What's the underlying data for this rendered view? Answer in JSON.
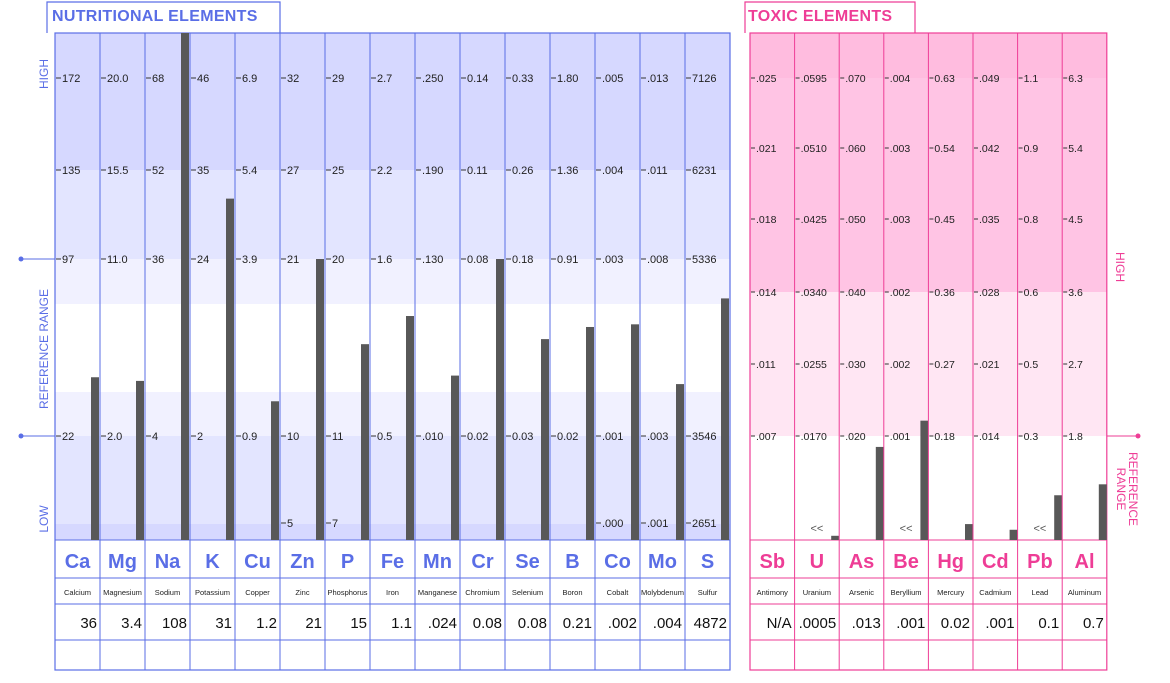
{
  "nutritional": {
    "title": "NUTRITIONAL ELEMENTS",
    "side_labels": {
      "high": "HIGH",
      "reference": "REFERENCE RANGE",
      "low": "LOW"
    },
    "colors": {
      "border": "#5a6ee6",
      "band_dark": "#d6d8ff",
      "band_mid": "#e3e5ff",
      "band_light": "#f1f1ff",
      "bar": "#585858"
    },
    "elements": [
      {
        "symbol": "Ca",
        "name": "Calcium",
        "result": "36",
        "ticks": [
          "172",
          "135",
          "97",
          "22"
        ]
      },
      {
        "symbol": "Mg",
        "name": "Magnesium",
        "result": "3.4",
        "ticks": [
          "20.0",
          "15.5",
          "11.0",
          "2.0"
        ]
      },
      {
        "symbol": "Na",
        "name": "Sodium",
        "result": "108",
        "ticks": [
          "68",
          "52",
          "36",
          "4"
        ]
      },
      {
        "symbol": "K",
        "name": "Potassium",
        "result": "31",
        "ticks": [
          "46",
          "35",
          "24",
          "2"
        ]
      },
      {
        "symbol": "Cu",
        "name": "Copper",
        "result": "1.2",
        "ticks": [
          "6.9",
          "5.4",
          "3.9",
          "0.9"
        ]
      },
      {
        "symbol": "Zn",
        "name": "Zinc",
        "result": "21",
        "ticks": [
          "32",
          "27",
          "21",
          "10"
        ],
        "bottom_tick": "5"
      },
      {
        "symbol": "P",
        "name": "Phosphorus",
        "result": "15",
        "ticks": [
          "29",
          "25",
          "20",
          "11"
        ],
        "bottom_tick": "7"
      },
      {
        "symbol": "Fe",
        "name": "Iron",
        "result": "1.1",
        "ticks": [
          "2.7",
          "2.2",
          "1.6",
          "0.5"
        ]
      },
      {
        "symbol": "Mn",
        "name": "Manganese",
        "result": ".024",
        "ticks": [
          ".250",
          ".190",
          ".130",
          ".010"
        ]
      },
      {
        "symbol": "Cr",
        "name": "Chromium",
        "result": "0.08",
        "ticks": [
          "0.14",
          "0.11",
          "0.08",
          "0.02"
        ]
      },
      {
        "symbol": "Se",
        "name": "Selenium",
        "result": "0.08",
        "ticks": [
          "0.33",
          "0.26",
          "0.18",
          "0.03"
        ]
      },
      {
        "symbol": "B",
        "name": "Boron",
        "result": "0.21",
        "ticks": [
          "1.80",
          "1.36",
          "0.91",
          "0.02"
        ]
      },
      {
        "symbol": "Co",
        "name": "Cobalt",
        "result": ".002",
        "ticks": [
          ".005",
          ".004",
          ".003",
          ".001"
        ],
        "bottom_tick": ".000"
      },
      {
        "symbol": "Mo",
        "name": "Molybdenum",
        "result": ".004",
        "ticks": [
          ".013",
          ".011",
          ".008",
          ".003"
        ],
        "bottom_tick": ".001"
      },
      {
        "symbol": "S",
        "name": "Sulfur",
        "result": "4872",
        "ticks": [
          "7126",
          "6231",
          "5336",
          "3546"
        ],
        "bottom_tick": "2651"
      }
    ]
  },
  "toxic": {
    "title": "TOXIC ELEMENTS",
    "side_labels": {
      "high": "HIGH",
      "reference": "REFERENCE RANGE"
    },
    "colors": {
      "border": "#ee3d96",
      "band_dark": "#ffc4e4",
      "band_mid": "#ffd3ea",
      "band_light": "#ffe6f3",
      "bar": "#585858"
    },
    "elements": [
      {
        "symbol": "Sb",
        "name": "Antimony",
        "result": "N/A",
        "ticks": [
          ".025",
          ".021",
          ".018",
          ".014",
          ".011",
          ".007"
        ]
      },
      {
        "symbol": "U",
        "name": "Uranium",
        "result": ".0005",
        "ticks": [
          ".0595",
          ".0510",
          ".0425",
          ".0340",
          ".0255",
          ".0170"
        ],
        "marker": "<<"
      },
      {
        "symbol": "As",
        "name": "Arsenic",
        "result": ".013",
        "ticks": [
          ".070",
          ".060",
          ".050",
          ".040",
          ".030",
          ".020"
        ]
      },
      {
        "symbol": "Be",
        "name": "Beryllium",
        "result": ".001",
        "ticks": [
          ".004",
          ".003",
          ".003",
          ".002",
          ".002",
          ".001"
        ],
        "marker": "<<"
      },
      {
        "symbol": "Hg",
        "name": "Mercury",
        "result": "0.02",
        "ticks": [
          "0.63",
          "0.54",
          "0.45",
          "0.36",
          "0.27",
          "0.18"
        ]
      },
      {
        "symbol": "Cd",
        "name": "Cadmium",
        "result": ".001",
        "ticks": [
          ".049",
          ".042",
          ".035",
          ".028",
          ".021",
          ".014"
        ]
      },
      {
        "symbol": "Pb",
        "name": "Lead",
        "result": "0.1",
        "ticks": [
          "1.1",
          "0.9",
          "0.8",
          "0.6",
          "0.5",
          "0.3"
        ],
        "marker": "<<"
      },
      {
        "symbol": "Al",
        "name": "Aluminum",
        "result": "0.7",
        "ticks": [
          "6.3",
          "5.4",
          "4.5",
          "3.6",
          "2.7",
          "1.8"
        ]
      }
    ]
  },
  "chart_data": {
    "type": "bar",
    "title": "",
    "series": [
      {
        "name": "NUTRITIONAL ELEMENTS",
        "categories": [
          "Ca",
          "Mg",
          "Na",
          "K",
          "Cu",
          "Zn",
          "P",
          "Fe",
          "Mn",
          "Cr",
          "Se",
          "B",
          "Co",
          "Mo",
          "S"
        ],
        "values": [
          36,
          3.4,
          108,
          31,
          1.2,
          21,
          15,
          1.1,
          0.024,
          0.08,
          0.08,
          0.21,
          0.002,
          0.004,
          4872
        ]
      },
      {
        "name": "TOXIC ELEMENTS",
        "categories": [
          "Sb",
          "U",
          "As",
          "Be",
          "Hg",
          "Cd",
          "Pb",
          "Al"
        ],
        "values": [
          null,
          0.0005,
          0.013,
          0.001,
          0.02,
          0.001,
          0.1,
          0.7
        ]
      }
    ]
  }
}
